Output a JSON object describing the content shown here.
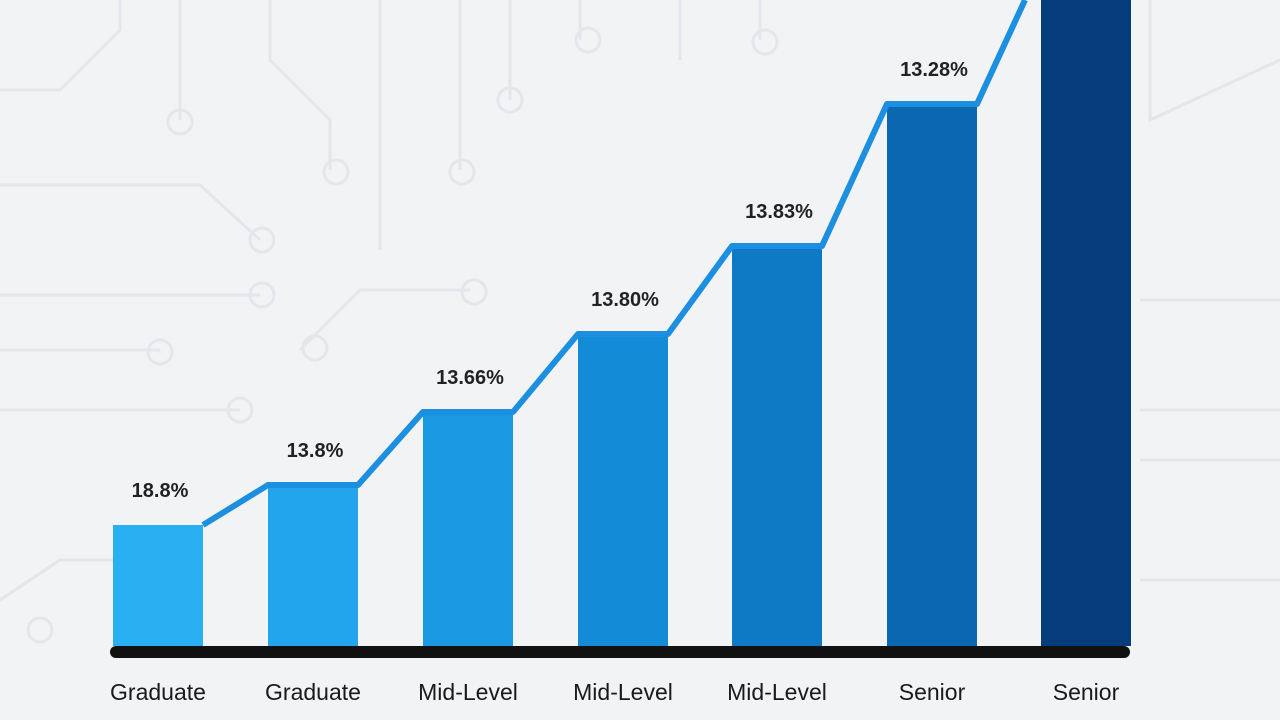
{
  "bars": [
    {
      "category": "Graduate",
      "value_label": "18.8%"
    },
    {
      "category": "Graduate",
      "value_label": "13.8%"
    },
    {
      "category": "Mid-Level",
      "value_label": "13.66%"
    },
    {
      "category": "Mid-Level",
      "value_label": "13.80%"
    },
    {
      "category": "Mid-Level",
      "value_label": "13.83%"
    },
    {
      "category": "Senior",
      "value_label": "13.28%"
    },
    {
      "category": "Senior"
    }
  ]
}
